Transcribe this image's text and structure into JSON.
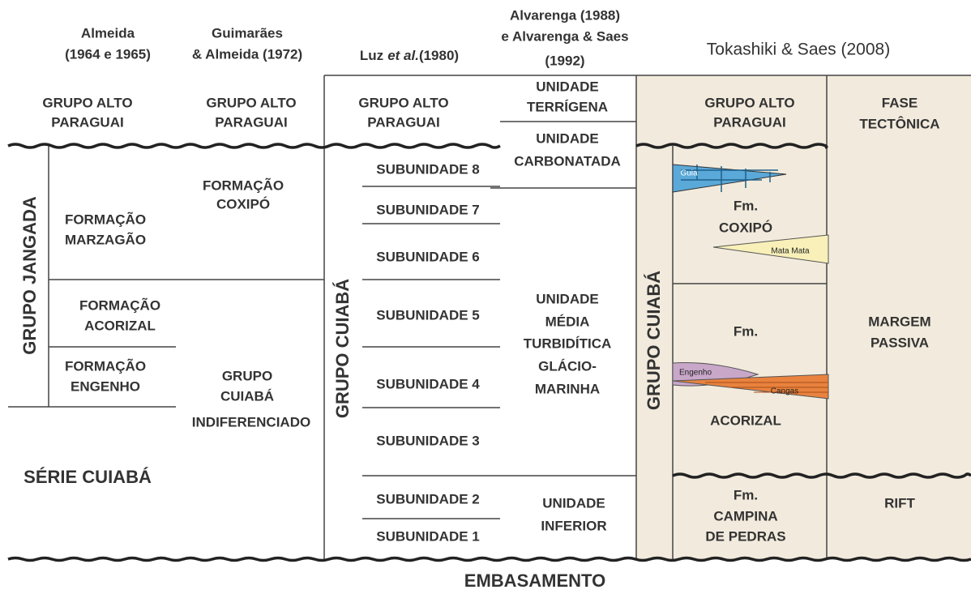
{
  "headers": {
    "almeida": [
      "Almeida",
      "(1964 e 1965)"
    ],
    "guimaraes": [
      "Guimarães",
      "& Almeida (1972)"
    ],
    "luz": [
      "Luz",
      "et al.",
      "(1980)"
    ],
    "alvarenga": [
      "Alvarenga (1988)",
      "e Alvarenga & Saes",
      "(1992)"
    ],
    "tokashiki": "Tokashiki & Saes (2008)"
  },
  "almeida": {
    "top": [
      "GRUPO ALTO",
      "PARAGUAI"
    ],
    "group": "GRUPO  JANGADA",
    "marzagao": [
      "FORMAÇÃO",
      "MARZAGÃO"
    ],
    "acorizal": [
      "FORMAÇÃO",
      "ACORIZAL"
    ],
    "engenho": [
      "FORMAÇÃO",
      "ENGENHO"
    ],
    "serie": "SÉRIE CUIABÁ"
  },
  "guimaraes": {
    "top": [
      "GRUPO ALTO",
      "PARAGUAI"
    ],
    "coxipo": [
      "FORMAÇÃO",
      "COXIPÓ"
    ],
    "cuiaba": [
      "GRUPO",
      "CUIABÁ",
      "INDIFERENCIADO"
    ]
  },
  "luz": {
    "top": [
      "GRUPO ALTO",
      "PARAGUAI"
    ],
    "group": "GRUPO  CUIABÁ",
    "subunits": [
      "SUBUNIDADE 8",
      "SUBUNIDADE 7",
      "SUBUNIDADE 6",
      "SUBUNIDADE 5",
      "SUBUNIDADE 4",
      "SUBUNIDADE 3",
      "SUBUNIDADE 2",
      "SUBUNIDADE 1"
    ]
  },
  "alvarenga": {
    "terrigena": [
      "UNIDADE",
      "TERRÍGENA"
    ],
    "carbonatada": [
      "UNIDADE",
      "CARBONATADA"
    ],
    "media": [
      "UNIDADE",
      "MÉDIA",
      "TURBIDÍTICA",
      "GLÁCIO-",
      "MARINHA"
    ],
    "inferior": [
      "UNIDADE",
      "INFERIOR"
    ]
  },
  "tokashiki": {
    "top": [
      "GRUPO ALTO",
      "PARAGUAI"
    ],
    "group": "GRUPO  CUIABÁ",
    "coxipo": [
      "Fm.",
      "COXIPÓ"
    ],
    "guia": "Guia",
    "mata_mata": "Mata Mata",
    "acorizal": [
      "Fm.",
      "ACORIZAL"
    ],
    "engenho": "Engenho",
    "cangas": "Cangas",
    "campina": [
      "Fm.",
      "CAMPINA",
      "DE PEDRAS"
    ]
  },
  "phases": {
    "top": [
      "FASE",
      "TECTÔNICA"
    ],
    "margem": [
      "MARGEM",
      "PASSIVA"
    ],
    "rift": "RIFT"
  },
  "footer": "EMBASAMENTO"
}
